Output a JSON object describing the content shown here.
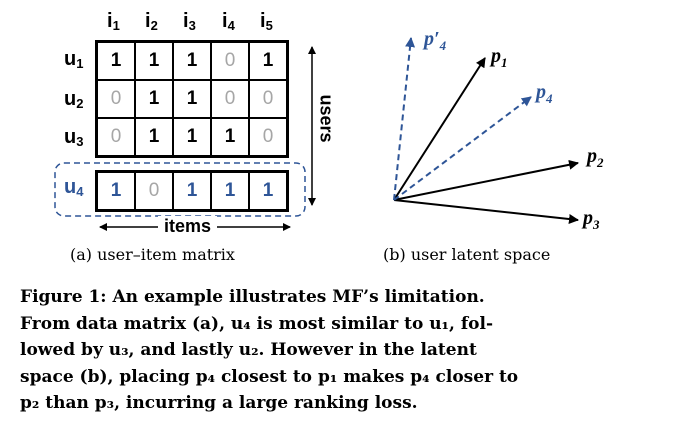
{
  "matrix": {
    "col_labels": [
      "i",
      "i",
      "i",
      "i",
      "i"
    ],
    "col_subs": [
      "1",
      "2",
      "3",
      "4",
      "5"
    ],
    "row_labels": [
      "u",
      "u",
      "u",
      "u"
    ],
    "row_subs": [
      "1",
      "2",
      "3",
      "4"
    ],
    "rows": [
      [
        "1",
        "1",
        "1",
        "0",
        "1"
      ],
      [
        "0",
        "1",
        "1",
        "0",
        "0"
      ],
      [
        "0",
        "1",
        "1",
        "1",
        "0"
      ],
      [
        "1",
        "0",
        "1",
        "1",
        "1"
      ]
    ],
    "users_label": "users",
    "items_label": "items"
  },
  "captions": {
    "a": "(a) user–item matrix",
    "b": "(b) user latent space"
  },
  "vectors": {
    "p1": "p",
    "p1_sub": "1",
    "p2": "p",
    "p2_sub": "2",
    "p3": "p",
    "p3_sub": "3",
    "p4": "p",
    "p4_sub": "4",
    "p4p": "p′",
    "p4p_sub": "4"
  },
  "figure_caption": {
    "lines": [
      "Figure 1:  An example illustrates MF’s limitation.",
      "From data matrix (a), u₄ is most similar to u₁, fol-",
      "lowed by u₃, and lastly u₂.  However in the latent",
      "space (b), placing p₄ closest to p₁ makes p₄ closer to",
      "p₂ than p₃, incurring a large ranking loss."
    ]
  },
  "colors": {
    "blue": "#2e5597",
    "gray": "#a6a6a6"
  }
}
